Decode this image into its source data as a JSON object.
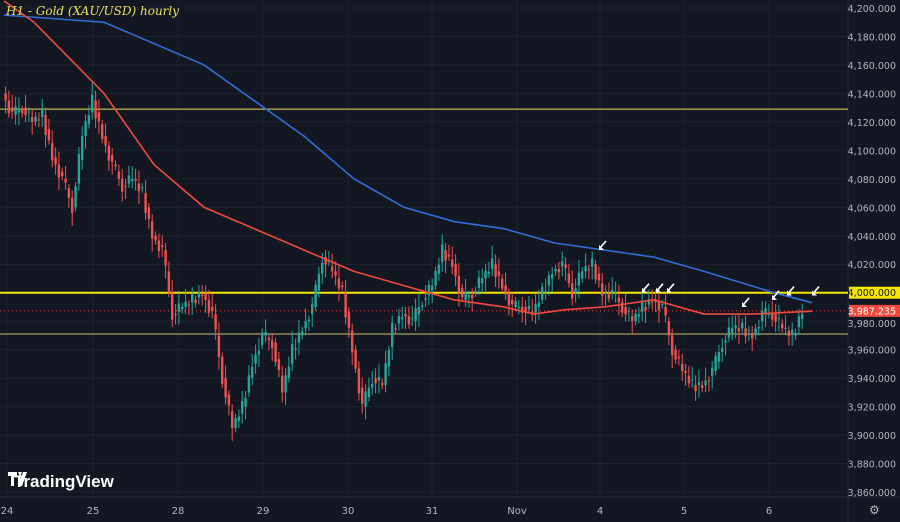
{
  "chart_data": {
    "type": "candlestick",
    "title": "H1 - Gold (XAU/USD) hourly",
    "ylim": [
      3860,
      4200
    ],
    "y_ticks": [
      3860,
      3880,
      3900,
      3920,
      3940,
      3960,
      3980,
      4000,
      4020,
      4040,
      4060,
      4080,
      4100,
      4120,
      4140,
      4160,
      4180,
      4200
    ],
    "y_tick_labels": [
      "3,860.000",
      "3,880.000",
      "3,900.000",
      "3,920.000",
      "3,940.000",
      "3,960.000",
      "3,980.000",
      "4,000.000",
      "4,020.000",
      "4,040.000",
      "4,060.000",
      "4,080.000",
      "4,100.000",
      "4,120.000",
      "4,140.000",
      "4,160.000",
      "4,180.000",
      "4,200.000"
    ],
    "x_ticks": [
      {
        "label": "24",
        "index": 0.3
      },
      {
        "label": "25",
        "index": 8.9
      },
      {
        "label": "28",
        "index": 17.4
      },
      {
        "label": "29",
        "index": 25.9
      },
      {
        "label": "30",
        "index": 34.4
      },
      {
        "label": "31",
        "index": 42.8
      },
      {
        "label": "Nov",
        "index": 51.3
      },
      {
        "label": "4",
        "index": 59.6
      },
      {
        "label": "5",
        "index": 68
      },
      {
        "label": "6",
        "index": 76.5
      }
    ],
    "close": [
      4140,
      4125,
      4130,
      4120,
      4125,
      4095,
      4080,
      4060,
      4110,
      4135,
      4110,
      4090,
      4075,
      4080,
      4070,
      4040,
      4030,
      3985,
      3990,
      3995,
      4000,
      3985,
      3940,
      3905,
      3920,
      3950,
      3970,
      3965,
      3930,
      3960,
      3975,
      3990,
      4025,
      4015,
      4000,
      3960,
      3920,
      3940,
      3935,
      3975,
      3985,
      3980,
      3995,
      4005,
      4030,
      4020,
      3995,
      4000,
      4010,
      4020,
      4005,
      3990,
      3990,
      3985,
      4000,
      4015,
      4020,
      4000,
      4015,
      4020,
      4000,
      4000,
      3990,
      3980,
      3990,
      3995,
      3990,
      3960,
      3945,
      3935,
      3935,
      3945,
      3965,
      3975,
      3975,
      3970,
      3985,
      3985,
      3975,
      3970,
      3987.235
    ],
    "moving_averages": [
      {
        "color": "#2f6fd6",
        "points": [
          [
            0,
            4195
          ],
          [
            10,
            4190
          ],
          [
            20,
            4160
          ],
          [
            30,
            4110
          ],
          [
            35,
            4080
          ],
          [
            40,
            4060
          ],
          [
            45,
            4050
          ],
          [
            50,
            4045
          ],
          [
            55,
            4035
          ],
          [
            60,
            4030
          ],
          [
            65,
            4025
          ],
          [
            70,
            4015
          ],
          [
            77,
            4000
          ],
          [
            80.8,
            3993
          ]
        ]
      },
      {
        "color": "#f04a3f",
        "points": [
          [
            0,
            4205
          ],
          [
            3,
            4190
          ],
          [
            10,
            4140
          ],
          [
            15,
            4090
          ],
          [
            20,
            4060
          ],
          [
            25,
            4045
          ],
          [
            30,
            4030
          ],
          [
            35,
            4015
          ],
          [
            40,
            4005
          ],
          [
            45,
            3995
          ],
          [
            50,
            3990
          ],
          [
            53,
            3985
          ],
          [
            56,
            3988
          ],
          [
            60,
            3990
          ],
          [
            65,
            3995
          ],
          [
            70,
            3985
          ],
          [
            75,
            3985
          ],
          [
            80.8,
            3987
          ]
        ]
      }
    ],
    "horizontal_lines": [
      {
        "price": 4129,
        "color": "#e8e05a",
        "weight": "thin"
      },
      {
        "price": 4000,
        "color": "#f5e600",
        "weight": "bold",
        "label": "4,000.000"
      },
      {
        "price": 3971,
        "color": "#c9c27a",
        "weight": "thin"
      }
    ],
    "last_price": {
      "price": 3987.235,
      "label": "3,987.235",
      "color": "#f04a3f"
    },
    "arrows": [
      [
        59.5,
        4030
      ],
      [
        63.8,
        4000
      ],
      [
        65.2,
        4000
      ],
      [
        66.3,
        4000
      ],
      [
        73.8,
        3990
      ],
      [
        76.8,
        3995
      ],
      [
        78.3,
        3998
      ],
      [
        80.8,
        3998
      ]
    ],
    "colors": {
      "up": "#26a69a",
      "down": "#ef5350",
      "background": "#131722",
      "grid": "#1e2230"
    },
    "grid": true
  },
  "brand": "TradingView"
}
